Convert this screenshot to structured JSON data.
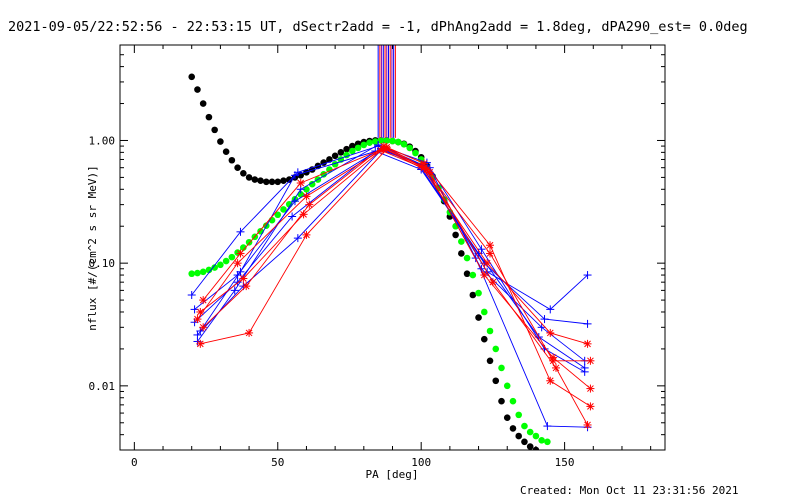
{
  "title": "2021-09-05/22:52:56 - 22:53:15 UT, dSectr2add = -1, dPhAng2add = 1.8deg, dPA290_est=  0.0deg",
  "footer": "Created: Mon Oct 11 23:31:56 2021",
  "colors": {
    "blue": "#0000ff",
    "red": "#ff0000",
    "green": "#00ff00",
    "black": "#000000",
    "purple": "#8800aa"
  },
  "chart_data": {
    "type": "scatter",
    "xlabel": "PA [deg]",
    "ylabel": "nflux [#/(cm^2 s sr MeV)]",
    "xlim": [
      -5,
      185
    ],
    "ylim": [
      0.003,
      6.0
    ],
    "yscale": "log",
    "xticks": [
      0,
      50,
      100,
      150
    ],
    "yticks": [
      {
        "value": 0.01,
        "label": "0.01"
      },
      {
        "value": 0.1,
        "label": "0.10"
      },
      {
        "value": 1.0,
        "label": "1.00"
      }
    ],
    "vertical_lines": [
      {
        "x": 85.0,
        "color": "#0000ff"
      },
      {
        "x": 85.6,
        "color": "#ff0000"
      },
      {
        "x": 86.2,
        "color": "#8800aa"
      },
      {
        "x": 86.8,
        "color": "#0000ff"
      },
      {
        "x": 87.4,
        "color": "#ff0000"
      },
      {
        "x": 88.0,
        "color": "#8800aa"
      },
      {
        "x": 88.6,
        "color": "#0000ff"
      },
      {
        "x": 89.2,
        "color": "#ff0000"
      },
      {
        "x": 89.8,
        "color": "#8800aa"
      },
      {
        "x": 90.4,
        "color": "#0000ff"
      },
      {
        "x": 91.0,
        "color": "#ff0000"
      }
    ],
    "series": [
      {
        "color": "#000000",
        "style": "dots",
        "x": [
          20,
          22,
          24,
          26,
          28,
          30,
          32,
          34,
          36,
          38,
          40,
          42,
          44,
          46,
          48,
          50,
          52,
          54,
          56,
          58,
          60,
          62,
          64,
          66,
          68,
          70,
          72,
          74,
          76,
          78,
          80,
          82,
          84,
          86,
          88,
          90,
          92,
          94,
          96,
          98,
          100,
          102,
          104,
          106,
          108,
          110,
          112,
          114,
          116,
          118,
          120,
          122,
          124,
          126,
          128,
          130,
          132,
          134,
          136,
          138,
          140
        ],
        "y": [
          3.3,
          2.6,
          2.0,
          1.55,
          1.22,
          0.98,
          0.81,
          0.69,
          0.6,
          0.54,
          0.5,
          0.48,
          0.47,
          0.46,
          0.46,
          0.46,
          0.47,
          0.48,
          0.5,
          0.52,
          0.55,
          0.58,
          0.62,
          0.66,
          0.7,
          0.75,
          0.8,
          0.85,
          0.9,
          0.94,
          0.97,
          0.99,
          1.0,
          1.0,
          1.0,
          0.99,
          0.97,
          0.94,
          0.89,
          0.82,
          0.73,
          0.62,
          0.51,
          0.41,
          0.32,
          0.24,
          0.17,
          0.12,
          0.082,
          0.055,
          0.036,
          0.024,
          0.016,
          0.011,
          0.0075,
          0.0055,
          0.0045,
          0.0039,
          0.0035,
          0.0032,
          0.003
        ]
      },
      {
        "color": "#00ff00",
        "style": "dots",
        "x": [
          20,
          22,
          24,
          26,
          28,
          30,
          32,
          34,
          36,
          38,
          40,
          42,
          44,
          46,
          48,
          50,
          52,
          54,
          56,
          58,
          60,
          62,
          64,
          66,
          68,
          70,
          72,
          74,
          76,
          78,
          80,
          82,
          84,
          86,
          88,
          90,
          92,
          94,
          96,
          98,
          100,
          102,
          104,
          106,
          108,
          110,
          112,
          114,
          116,
          118,
          120,
          122,
          124,
          126,
          128,
          130,
          132,
          134,
          136,
          138,
          140,
          142,
          144
        ],
        "y": [
          0.082,
          0.083,
          0.085,
          0.088,
          0.092,
          0.097,
          0.104,
          0.112,
          0.122,
          0.134,
          0.148,
          0.164,
          0.182,
          0.202,
          0.224,
          0.248,
          0.274,
          0.302,
          0.332,
          0.364,
          0.4,
          0.44,
          0.48,
          0.53,
          0.58,
          0.64,
          0.7,
          0.76,
          0.82,
          0.87,
          0.92,
          0.96,
          0.98,
          1.0,
          1.0,
          0.99,
          0.97,
          0.93,
          0.87,
          0.79,
          0.7,
          0.6,
          0.5,
          0.41,
          0.33,
          0.26,
          0.2,
          0.15,
          0.11,
          0.08,
          0.057,
          0.04,
          0.028,
          0.02,
          0.014,
          0.01,
          0.0075,
          0.0058,
          0.0047,
          0.0042,
          0.0039,
          0.0036,
          0.0035
        ]
      },
      {
        "color": "#0000ff",
        "style": "line-plus",
        "x": [
          20,
          37,
          57,
          85,
          100,
          122,
          143,
          158
        ],
        "y": [
          0.055,
          0.18,
          0.55,
          0.9,
          0.6,
          0.1,
          0.035,
          0.032
        ]
      },
      {
        "color": "#0000ff",
        "style": "line-plus",
        "x": [
          21,
          36,
          56,
          86,
          101,
          121,
          142,
          157
        ],
        "y": [
          0.042,
          0.08,
          0.32,
          0.86,
          0.62,
          0.09,
          0.03,
          0.016
        ]
      },
      {
        "color": "#0000ff",
        "style": "line-plus",
        "x": [
          21,
          36,
          55,
          84,
          100,
          120,
          141,
          157
        ],
        "y": [
          0.033,
          0.07,
          0.24,
          0.82,
          0.58,
          0.12,
          0.025,
          0.014
        ]
      },
      {
        "color": "#0000ff",
        "style": "line-plus",
        "x": [
          22,
          38,
          57,
          87,
          102,
          119,
          144,
          158
        ],
        "y": [
          0.026,
          0.065,
          0.16,
          0.88,
          0.66,
          0.11,
          0.0047,
          0.0046
        ]
      },
      {
        "color": "#0000ff",
        "style": "line-plus",
        "x": [
          22,
          35,
          58,
          85,
          100,
          123,
          145,
          158
        ],
        "y": [
          0.023,
          0.06,
          0.4,
          0.92,
          0.64,
          0.085,
          0.042,
          0.08
        ]
      },
      {
        "color": "#0000ff",
        "style": "line-plus",
        "x": [
          23,
          37,
          56,
          86,
          103,
          121,
          143,
          157
        ],
        "y": [
          0.028,
          0.085,
          0.52,
          0.84,
          0.6,
          0.13,
          0.02,
          0.013
        ]
      },
      {
        "color": "#ff0000",
        "style": "line-star",
        "x": [
          23,
          40,
          60,
          88,
          101,
          124,
          146,
          159
        ],
        "y": [
          0.022,
          0.027,
          0.17,
          0.85,
          0.6,
          0.12,
          0.016,
          0.016
        ]
      },
      {
        "color": "#ff0000",
        "style": "line-star",
        "x": [
          24,
          39,
          61,
          87,
          100,
          123,
          145,
          158
        ],
        "y": [
          0.03,
          0.065,
          0.3,
          0.9,
          0.62,
          0.1,
          0.027,
          0.022
        ]
      },
      {
        "color": "#ff0000",
        "style": "line-star",
        "x": [
          23,
          38,
          59,
          86,
          102,
          122,
          146,
          159
        ],
        "y": [
          0.04,
          0.075,
          0.25,
          0.83,
          0.58,
          0.08,
          0.017,
          0.0095
        ]
      },
      {
        "color": "#ff0000",
        "style": "line-star",
        "x": [
          24,
          37,
          58,
          88,
          101,
          124,
          145,
          159
        ],
        "y": [
          0.05,
          0.12,
          0.45,
          0.88,
          0.65,
          0.14,
          0.011,
          0.0068
        ]
      },
      {
        "color": "#ff0000",
        "style": "line-star",
        "x": [
          22,
          36,
          60,
          87,
          103,
          125,
          147,
          158
        ],
        "y": [
          0.035,
          0.1,
          0.35,
          0.86,
          0.55,
          0.07,
          0.014,
          0.0048
        ]
      }
    ]
  }
}
